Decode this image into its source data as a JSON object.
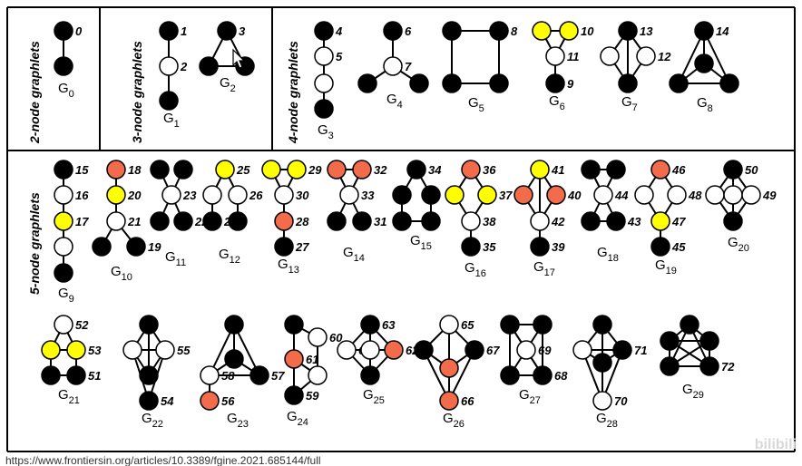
{
  "sections": {
    "two": "2-node graphlets",
    "three": "3-node graphlets",
    "four": "4-node graphlets",
    "five": "5-node graphlets"
  },
  "colors": {
    "black": "#000000",
    "white": "#ffffff",
    "yellow": "#ffff00",
    "orange": "#f26b4a"
  },
  "graphlets": [
    {
      "id": "G0",
      "label": "G",
      "sub": "0",
      "nodes": [
        [
          "b",
          "0"
        ],
        [
          "b",
          ""
        ]
      ],
      "edges": [
        [
          0,
          1
        ]
      ]
    },
    {
      "id": "G1",
      "label": "G",
      "sub": "1",
      "nodes": [
        [
          "b",
          "1"
        ],
        [
          "w",
          "2"
        ],
        [
          "b",
          ""
        ]
      ],
      "edges": [
        [
          0,
          1
        ],
        [
          1,
          2
        ]
      ]
    },
    {
      "id": "G2",
      "label": "G",
      "sub": "2",
      "nodes": [
        [
          "b",
          "3"
        ],
        [
          "b",
          ""
        ],
        [
          "b",
          ""
        ]
      ],
      "edges": [
        [
          0,
          1
        ],
        [
          0,
          2
        ],
        [
          1,
          2
        ]
      ]
    },
    {
      "id": "G3",
      "label": "G",
      "sub": "3",
      "nodes": [
        [
          "b",
          "4"
        ],
        [
          "w",
          "5"
        ],
        [
          "w",
          ""
        ],
        [
          "b",
          ""
        ]
      ],
      "edges": [
        [
          0,
          1
        ],
        [
          1,
          2
        ],
        [
          2,
          3
        ]
      ]
    },
    {
      "id": "G4",
      "label": "G",
      "sub": "4",
      "nodes": [
        [
          "b",
          "6"
        ],
        [
          "w",
          "7"
        ],
        [
          "b",
          ""
        ],
        [
          "b",
          ""
        ]
      ],
      "edges": [
        [
          0,
          1
        ],
        [
          1,
          2
        ],
        [
          1,
          3
        ]
      ]
    },
    {
      "id": "G5",
      "label": "G",
      "sub": "5",
      "nodes": [
        [
          "b",
          ""
        ],
        [
          "b",
          "8"
        ],
        [
          "b",
          ""
        ],
        [
          "b",
          ""
        ]
      ],
      "edges": [
        [
          0,
          1
        ],
        [
          1,
          3
        ],
        [
          3,
          2
        ],
        [
          2,
          0
        ]
      ]
    },
    {
      "id": "G6",
      "label": "G",
      "sub": "6",
      "nodes": [
        [
          "y",
          ""
        ],
        [
          "y",
          "10"
        ],
        [
          "w",
          "11"
        ],
        [
          "b",
          "9"
        ]
      ],
      "edges": [
        [
          0,
          1
        ],
        [
          0,
          2
        ],
        [
          1,
          2
        ],
        [
          2,
          3
        ]
      ]
    },
    {
      "id": "G7",
      "label": "G",
      "sub": "7",
      "nodes": [
        [
          "b",
          "13"
        ],
        [
          "w",
          ""
        ],
        [
          "w",
          "12"
        ],
        [
          "b",
          ""
        ]
      ],
      "edges": [
        [
          0,
          1
        ],
        [
          0,
          2
        ],
        [
          1,
          3
        ],
        [
          2,
          3
        ],
        [
          0,
          3
        ]
      ]
    },
    {
      "id": "G8",
      "label": "G",
      "sub": "8",
      "nodes": [
        [
          "b",
          "14"
        ],
        [
          "b",
          ""
        ],
        [
          "b",
          ""
        ],
        [
          "b",
          ""
        ]
      ],
      "edges": [
        [
          0,
          1
        ],
        [
          0,
          2
        ],
        [
          0,
          3
        ],
        [
          1,
          2
        ],
        [
          1,
          3
        ],
        [
          2,
          3
        ]
      ]
    },
    {
      "id": "G9",
      "label": "G",
      "sub": "9",
      "nodes": [
        [
          "b",
          "15"
        ],
        [
          "w",
          "16"
        ],
        [
          "y",
          "17"
        ],
        [
          "w",
          ""
        ],
        [
          "b",
          ""
        ]
      ],
      "edges": [
        [
          0,
          1
        ],
        [
          1,
          2
        ],
        [
          2,
          3
        ],
        [
          3,
          4
        ]
      ]
    },
    {
      "id": "G10",
      "label": "G",
      "sub": "10",
      "nodes": [
        [
          "o",
          "18"
        ],
        [
          "y",
          "20"
        ],
        [
          "w",
          "21"
        ],
        [
          "b",
          ""
        ],
        [
          "b",
          "19"
        ]
      ],
      "edges": [
        [
          0,
          1
        ],
        [
          1,
          2
        ],
        [
          2,
          3
        ],
        [
          2,
          4
        ]
      ]
    },
    {
      "id": "G11",
      "label": "G",
      "sub": "11",
      "nodes": [
        [
          "b",
          ""
        ],
        [
          "b",
          ""
        ],
        [
          "w",
          "23"
        ],
        [
          "b",
          ""
        ],
        [
          "b",
          "22"
        ]
      ],
      "edges": [
        [
          0,
          2
        ],
        [
          1,
          2
        ],
        [
          2,
          3
        ],
        [
          2,
          4
        ]
      ]
    },
    {
      "id": "G12",
      "label": "G",
      "sub": "12",
      "nodes": [
        [
          "y",
          "25"
        ],
        [
          "w",
          ""
        ],
        [
          "w",
          "26"
        ],
        [
          "b",
          "24"
        ],
        [
          "b",
          ""
        ]
      ],
      "edges": [
        [
          0,
          1
        ],
        [
          0,
          2
        ],
        [
          1,
          3
        ],
        [
          2,
          4
        ]
      ]
    },
    {
      "id": "G13",
      "label": "G",
      "sub": "13",
      "nodes": [
        [
          "y",
          ""
        ],
        [
          "y",
          "29"
        ],
        [
          "w",
          "30"
        ],
        [
          "o",
          "28"
        ],
        [
          "b",
          "27"
        ]
      ],
      "edges": [
        [
          0,
          1
        ],
        [
          0,
          2
        ],
        [
          1,
          2
        ],
        [
          2,
          3
        ],
        [
          3,
          4
        ]
      ]
    },
    {
      "id": "G14",
      "label": "G",
      "sub": "14",
      "nodes": [
        [
          "o",
          ""
        ],
        [
          "o",
          "32"
        ],
        [
          "w",
          "33"
        ],
        [
          "b",
          ""
        ],
        [
          "b",
          "31"
        ]
      ],
      "edges": [
        [
          0,
          1
        ],
        [
          0,
          2
        ],
        [
          1,
          2
        ],
        [
          2,
          3
        ],
        [
          2,
          4
        ]
      ]
    },
    {
      "id": "G15",
      "label": "G",
      "sub": "15",
      "nodes": [
        [
          "b",
          "34"
        ],
        [
          "b",
          ""
        ],
        [
          "b",
          ""
        ],
        [
          "b",
          ""
        ],
        [
          "b",
          ""
        ]
      ],
      "edges": [
        [
          0,
          1
        ],
        [
          0,
          2
        ],
        [
          1,
          3
        ],
        [
          2,
          4
        ],
        [
          3,
          4
        ]
      ]
    },
    {
      "id": "G16",
      "label": "G",
      "sub": "16",
      "nodes": [
        [
          "o",
          "36"
        ],
        [
          "y",
          ""
        ],
        [
          "y",
          "37"
        ],
        [
          "w",
          "38"
        ],
        [
          "b",
          "35"
        ]
      ],
      "edges": [
        [
          0,
          1
        ],
        [
          0,
          2
        ],
        [
          1,
          3
        ],
        [
          2,
          3
        ],
        [
          3,
          4
        ]
      ]
    },
    {
      "id": "G17",
      "label": "G",
      "sub": "17",
      "nodes": [
        [
          "y",
          "41"
        ],
        [
          "o",
          ""
        ],
        [
          "o",
          "40"
        ],
        [
          "w",
          "42"
        ],
        [
          "b",
          "39"
        ]
      ],
      "edges": [
        [
          0,
          1
        ],
        [
          0,
          2
        ],
        [
          0,
          3
        ],
        [
          1,
          3
        ],
        [
          2,
          3
        ],
        [
          3,
          4
        ]
      ]
    },
    {
      "id": "G18",
      "label": "G",
      "sub": "18",
      "nodes": [
        [
          "b",
          ""
        ],
        [
          "b",
          ""
        ],
        [
          "w",
          "44"
        ],
        [
          "b",
          ""
        ],
        [
          "b",
          "43"
        ]
      ],
      "edges": [
        [
          0,
          1
        ],
        [
          0,
          2
        ],
        [
          1,
          2
        ],
        [
          2,
          3
        ],
        [
          2,
          4
        ],
        [
          3,
          4
        ]
      ]
    },
    {
      "id": "G19",
      "label": "G",
      "sub": "19",
      "nodes": [
        [
          "o",
          "46"
        ],
        [
          "w",
          ""
        ],
        [
          "w",
          "48"
        ],
        [
          "y",
          "47"
        ],
        [
          "b",
          "45"
        ]
      ],
      "edges": [
        [
          0,
          1
        ],
        [
          0,
          2
        ],
        [
          1,
          3
        ],
        [
          2,
          3
        ],
        [
          3,
          4
        ]
      ]
    },
    {
      "id": "G20",
      "label": "G",
      "sub": "20",
      "nodes": [
        [
          "b",
          "50"
        ],
        [
          "w",
          ""
        ],
        [
          "w",
          ""
        ],
        [
          "w",
          "49"
        ],
        [
          "b",
          ""
        ]
      ],
      "edges": [
        [
          0,
          1
        ],
        [
          0,
          2
        ],
        [
          0,
          3
        ],
        [
          1,
          4
        ],
        [
          2,
          4
        ],
        [
          3,
          4
        ]
      ]
    },
    {
      "id": "G21",
      "label": "G",
      "sub": "21",
      "nodes": [
        [
          "w",
          "52"
        ],
        [
          "y",
          ""
        ],
        [
          "y",
          "53"
        ],
        [
          "b",
          ""
        ],
        [
          "b",
          "51"
        ]
      ],
      "edges": [
        [
          0,
          1
        ],
        [
          0,
          2
        ],
        [
          1,
          2
        ],
        [
          1,
          3
        ],
        [
          2,
          4
        ],
        [
          3,
          4
        ]
      ]
    },
    {
      "id": "G22",
      "label": "G",
      "sub": "22",
      "nodes": [
        [
          "b",
          ""
        ],
        [
          "w",
          ""
        ],
        [
          "w",
          "55"
        ],
        [
          "b",
          ""
        ],
        [
          "b",
          "54"
        ]
      ],
      "edges": [
        [
          0,
          1
        ],
        [
          0,
          2
        ],
        [
          0,
          3
        ],
        [
          1,
          2
        ],
        [
          1,
          3
        ],
        [
          2,
          3
        ],
        [
          1,
          4
        ],
        [
          2,
          4
        ]
      ]
    },
    {
      "id": "G23",
      "label": "G",
      "sub": "23",
      "nodes": [
        [
          "b",
          ""
        ],
        [
          "b",
          ""
        ],
        [
          "w",
          "58"
        ],
        [
          "b",
          "57"
        ],
        [
          "o",
          "56"
        ]
      ],
      "edges": [
        [
          0,
          1
        ],
        [
          0,
          2
        ],
        [
          0,
          3
        ],
        [
          1,
          2
        ],
        [
          1,
          3
        ],
        [
          2,
          3
        ],
        [
          2,
          4
        ]
      ]
    },
    {
      "id": "G24",
      "label": "G",
      "sub": "24",
      "nodes": [
        [
          "b",
          ""
        ],
        [
          "w",
          "60"
        ],
        [
          "o",
          "61"
        ],
        [
          "w",
          ""
        ],
        [
          "b",
          "59"
        ]
      ],
      "edges": [
        [
          0,
          1
        ],
        [
          0,
          2
        ],
        [
          1,
          3
        ],
        [
          2,
          3
        ],
        [
          2,
          4
        ],
        [
          3,
          4
        ],
        [
          0,
          4
        ]
      ]
    },
    {
      "id": "G25",
      "label": "G",
      "sub": "25",
      "nodes": [
        [
          "b",
          "63"
        ],
        [
          "w",
          "64"
        ],
        [
          "w",
          ""
        ],
        [
          "o",
          "62"
        ],
        [
          "b",
          ""
        ]
      ],
      "edges": [
        [
          0,
          1
        ],
        [
          0,
          2
        ],
        [
          0,
          3
        ],
        [
          1,
          2
        ],
        [
          2,
          3
        ],
        [
          1,
          4
        ],
        [
          2,
          4
        ],
        [
          3,
          4
        ]
      ]
    },
    {
      "id": "G26",
      "label": "G",
      "sub": "26",
      "nodes": [
        [
          "w",
          "65"
        ],
        [
          "b",
          ""
        ],
        [
          "o",
          ""
        ],
        [
          "b",
          "67"
        ],
        [
          "o",
          "66"
        ]
      ],
      "edges": [
        [
          0,
          1
        ],
        [
          0,
          2
        ],
        [
          0,
          3
        ],
        [
          1,
          2
        ],
        [
          2,
          3
        ],
        [
          1,
          4
        ],
        [
          2,
          4
        ],
        [
          3,
          4
        ]
      ]
    },
    {
      "id": "G27",
      "label": "G",
      "sub": "27",
      "nodes": [
        [
          "b",
          ""
        ],
        [
          "b",
          ""
        ],
        [
          "w",
          "69"
        ],
        [
          "b",
          ""
        ],
        [
          "b",
          "68"
        ]
      ],
      "edges": [
        [
          0,
          1
        ],
        [
          0,
          3
        ],
        [
          1,
          4
        ],
        [
          3,
          4
        ],
        [
          0,
          2
        ],
        [
          1,
          2
        ],
        [
          2,
          3
        ],
        [
          2,
          4
        ],
        [
          0,
          4
        ]
      ]
    },
    {
      "id": "G28",
      "label": "G",
      "sub": "28",
      "nodes": [
        [
          "b",
          ""
        ],
        [
          "w",
          ""
        ],
        [
          "b",
          "71"
        ],
        [
          "w",
          "70"
        ],
        [
          "b",
          ""
        ]
      ],
      "edges": [
        [
          0,
          1
        ],
        [
          0,
          2
        ],
        [
          0,
          3
        ],
        [
          0,
          4
        ],
        [
          1,
          2
        ],
        [
          1,
          3
        ],
        [
          2,
          3
        ],
        [
          2,
          4
        ],
        [
          1,
          4
        ]
      ]
    },
    {
      "id": "G29",
      "label": "G",
      "sub": "29",
      "nodes": [
        [
          "b",
          ""
        ],
        [
          "b",
          ""
        ],
        [
          "b",
          ""
        ],
        [
          "b",
          ""
        ],
        [
          "b",
          "72"
        ]
      ],
      "edges": [
        [
          0,
          1
        ],
        [
          0,
          2
        ],
        [
          0,
          3
        ],
        [
          0,
          4
        ],
        [
          1,
          2
        ],
        [
          1,
          3
        ],
        [
          1,
          4
        ],
        [
          2,
          3
        ],
        [
          2,
          4
        ],
        [
          3,
          4
        ]
      ]
    }
  ],
  "footer": "https://www.frontiersin.org/articles/10.3389/fgine.2021.685144/full",
  "watermark": "bilibili"
}
